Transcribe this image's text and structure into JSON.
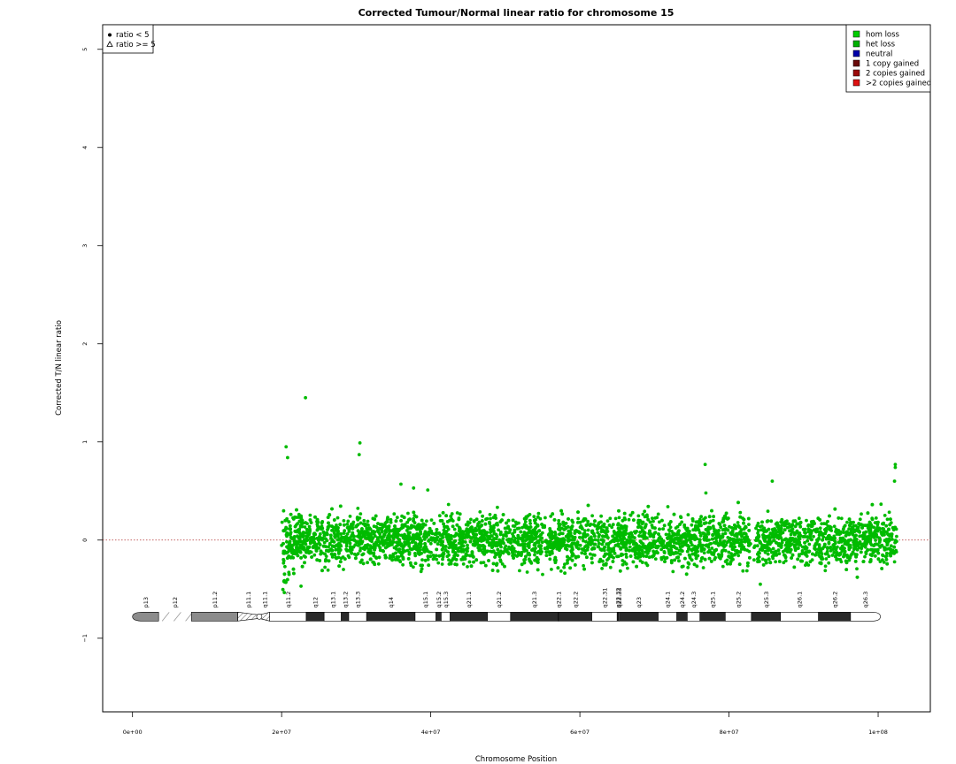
{
  "chart_data": {
    "type": "scatter",
    "title": "Corrected Tumour/Normal linear ratio for chromosome  15",
    "xlabel": "Chromosome Position",
    "ylabel": "Corrected T/N linear ratio",
    "xlim": [
      -4000000,
      107000000
    ],
    "ylim": [
      -1.75,
      5.25
    ],
    "x_ticks": [
      {
        "value": 0,
        "label": "0e+00"
      },
      {
        "value": 20000000,
        "label": "2e+07"
      },
      {
        "value": 40000000,
        "label": "4e+07"
      },
      {
        "value": 60000000,
        "label": "6e+07"
      },
      {
        "value": 80000000,
        "label": "8e+07"
      },
      {
        "value": 100000000,
        "label": "1e+08"
      }
    ],
    "y_ticks": [
      {
        "value": -1,
        "label": "−1"
      },
      {
        "value": 0,
        "label": "0"
      },
      {
        "value": 1,
        "label": "1"
      },
      {
        "value": 2,
        "label": "2"
      },
      {
        "value": 3,
        "label": "3"
      },
      {
        "value": 4,
        "label": "4"
      },
      {
        "value": 5,
        "label": "5"
      }
    ],
    "reference_line": {
      "y": 0,
      "style": "dotted",
      "color": "#b03030"
    },
    "grid": false,
    "shape_legend": {
      "position": "top-left",
      "items": [
        {
          "symbol": "filled-circle",
          "label": "ratio < 5"
        },
        {
          "symbol": "open-triangle",
          "label": "ratio >= 5"
        }
      ]
    },
    "color_legend": {
      "position": "top-right",
      "items": [
        {
          "label": "hom loss",
          "color": "#00cc00"
        },
        {
          "label": "het loss",
          "color": "#00b000"
        },
        {
          "label": "neutral",
          "color": "#0000aa"
        },
        {
          "label": "1 copy gained",
          "color": "#6a0a0a"
        },
        {
          "label": "2 copies gained",
          "color": "#9a0a0a"
        },
        {
          "label": ">2 copies gained",
          "color": "#dd1111"
        }
      ]
    },
    "series": [
      {
        "name": "het loss",
        "color": "#00bb00",
        "x_range": [
          20000000,
          102500000
        ],
        "typical_y_range": [
          -0.3,
          0.3
        ],
        "center_y": 0.0,
        "outliers": [
          {
            "x": 23200000,
            "y": 1.45
          },
          {
            "x": 20600000,
            "y": 0.95
          },
          {
            "x": 20800000,
            "y": 0.84
          },
          {
            "x": 30500000,
            "y": 0.99
          },
          {
            "x": 30400000,
            "y": 0.87
          },
          {
            "x": 76800000,
            "y": 0.77
          },
          {
            "x": 85800000,
            "y": 0.6
          },
          {
            "x": 102300000,
            "y": 0.77
          },
          {
            "x": 102300000,
            "y": 0.74
          },
          {
            "x": 102200000,
            "y": 0.6
          },
          {
            "x": 36000000,
            "y": 0.57
          },
          {
            "x": 37700000,
            "y": 0.53
          },
          {
            "x": 39600000,
            "y": 0.51
          },
          {
            "x": 76900000,
            "y": 0.48
          },
          {
            "x": 20300000,
            "y": -0.42
          },
          {
            "x": 22600000,
            "y": -0.47
          },
          {
            "x": 55000000,
            "y": -0.35
          },
          {
            "x": 84200000,
            "y": -0.45
          }
        ]
      }
    ],
    "ideogram": {
      "y": -0.78,
      "bands": [
        {
          "name": "p13",
          "start": 0,
          "end": 3500000,
          "stain": "gvar"
        },
        {
          "name": "p12",
          "start": 3500000,
          "end": 7900000,
          "stain": "stalk"
        },
        {
          "name": "p11.2",
          "start": 7900000,
          "end": 14100000,
          "stain": "gvar"
        },
        {
          "name": "p11.1",
          "start": 14100000,
          "end": 17000000,
          "stain": "acen"
        },
        {
          "name": "q11.1",
          "start": 17000000,
          "end": 18400000,
          "stain": "acen"
        },
        {
          "name": "q11.2",
          "start": 18400000,
          "end": 23300000,
          "stain": "gneg"
        },
        {
          "name": "q12",
          "start": 23300000,
          "end": 25700000,
          "stain": "gpos"
        },
        {
          "name": "q13.1",
          "start": 25700000,
          "end": 28000000,
          "stain": "gneg"
        },
        {
          "name": "q13.2",
          "start": 28000000,
          "end": 29000000,
          "stain": "gpos"
        },
        {
          "name": "q13.3",
          "start": 29000000,
          "end": 31400000,
          "stain": "gneg"
        },
        {
          "name": "q14",
          "start": 31400000,
          "end": 37900000,
          "stain": "gpos"
        },
        {
          "name": "q15.1",
          "start": 37900000,
          "end": 40700000,
          "stain": "gneg"
        },
        {
          "name": "q15.2",
          "start": 40700000,
          "end": 41400000,
          "stain": "gpos"
        },
        {
          "name": "q15.3",
          "start": 41400000,
          "end": 42600000,
          "stain": "gneg"
        },
        {
          "name": "q21.1",
          "start": 42600000,
          "end": 47600000,
          "stain": "gpos"
        },
        {
          "name": "q21.2",
          "start": 47600000,
          "end": 50700000,
          "stain": "gneg"
        },
        {
          "name": "q21.3",
          "start": 50700000,
          "end": 57100000,
          "stain": "gpos"
        },
        {
          "name": "q22.1",
          "start": 57100000,
          "end": 57200000,
          "stain": "gneg"
        },
        {
          "name": "q22.2",
          "start": 57200000,
          "end": 61600000,
          "stain": "gpos"
        },
        {
          "name": "q22.31",
          "start": 61600000,
          "end": 65000000,
          "stain": "gneg"
        },
        {
          "name": "q22.32",
          "start": 65000000,
          "end": 65200000,
          "stain": "gpos"
        },
        {
          "name": "q22.33",
          "start": 65200000,
          "end": 65300000,
          "stain": "gneg"
        },
        {
          "name": "q23",
          "start": 65300000,
          "end": 70500000,
          "stain": "gpos"
        },
        {
          "name": "q24.1",
          "start": 70500000,
          "end": 73000000,
          "stain": "gneg"
        },
        {
          "name": "q24.2",
          "start": 73000000,
          "end": 74400000,
          "stain": "gpos"
        },
        {
          "name": "q24.3",
          "start": 74400000,
          "end": 76100000,
          "stain": "gneg"
        },
        {
          "name": "q25.1",
          "start": 76100000,
          "end": 79500000,
          "stain": "gpos"
        },
        {
          "name": "q25.2",
          "start": 79500000,
          "end": 83000000,
          "stain": "gneg"
        },
        {
          "name": "q25.3",
          "start": 83000000,
          "end": 86900000,
          "stain": "gpos"
        },
        {
          "name": "q26.1",
          "start": 86900000,
          "end": 92000000,
          "stain": "gneg"
        },
        {
          "name": "q26.2",
          "start": 92000000,
          "end": 96300000,
          "stain": "gpos"
        },
        {
          "name": "q26.3",
          "start": 96300000,
          "end": 100300000,
          "stain": "gneg"
        }
      ]
    }
  }
}
